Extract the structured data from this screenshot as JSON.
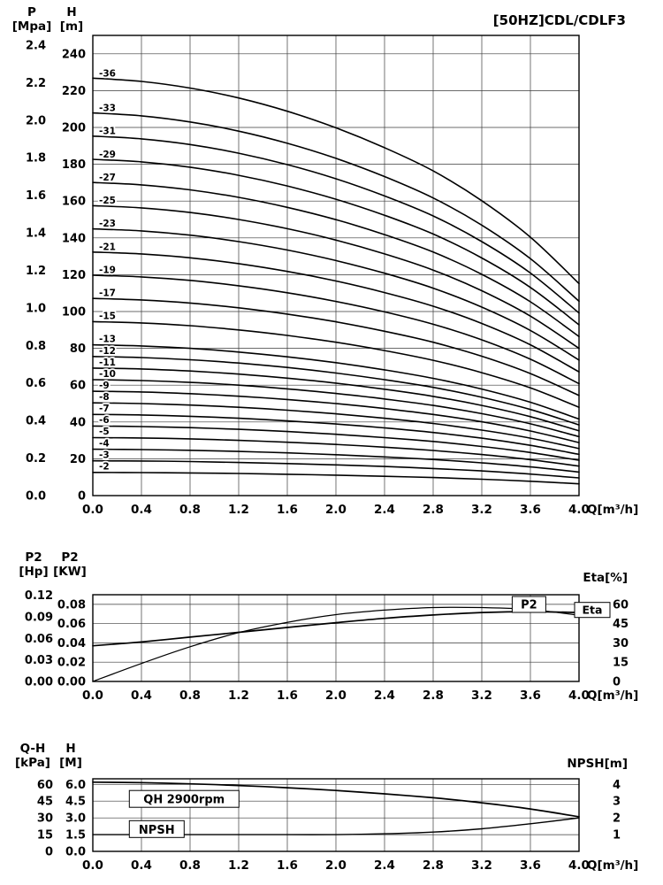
{
  "chart_data": [
    {
      "id": "main",
      "type": "line",
      "title": "[50HZ]CDL/CDLF3",
      "xlabel": "Q[m³/h]",
      "xlim": [
        0,
        4
      ],
      "x": [
        0,
        0.4,
        0.8,
        1.2,
        1.6,
        2.0,
        2.4,
        2.8,
        3.2,
        3.6,
        4.0
      ],
      "x_tick_labels": [
        "0.0",
        "0.4",
        "0.8",
        "1.2",
        "1.6",
        "2.0",
        "2.4",
        "2.8",
        "3.2",
        "3.6",
        "4.0"
      ],
      "left_outer_axis": {
        "name": "P",
        "unit": "[Mpa]",
        "ticks": [
          "0.0",
          "0.2",
          "0.4",
          "0.6",
          "0.8",
          "1.0",
          "1.2",
          "1.4",
          "1.6",
          "1.8",
          "2.0",
          "2.2",
          "2.4"
        ]
      },
      "left_inner_axis": {
        "name": "H",
        "unit": "[m]",
        "ticks": [
          "0",
          "20",
          "40",
          "60",
          "80",
          "100",
          "120",
          "140",
          "160",
          "180",
          "200",
          "220",
          "240"
        ]
      },
      "ylim": [
        0,
        250
      ],
      "grid": true,
      "series": [
        {
          "name": "-36",
          "values": [
            226.8,
            225.0,
            221.4,
            216.0,
            208.8,
            199.8,
            189.0,
            176.4,
            160.2,
            140.4,
            115.2
          ]
        },
        {
          "name": "-33",
          "values": [
            207.9,
            206.3,
            203.0,
            198.0,
            191.4,
            183.2,
            173.3,
            161.7,
            146.9,
            128.7,
            105.6
          ]
        },
        {
          "name": "-31",
          "values": [
            195.3,
            193.8,
            190.7,
            186.0,
            179.8,
            172.1,
            162.8,
            151.9,
            138.0,
            120.9,
            99.2
          ]
        },
        {
          "name": "-29",
          "values": [
            182.7,
            181.3,
            178.4,
            174.0,
            168.2,
            161.0,
            152.3,
            142.1,
            129.1,
            113.1,
            92.8
          ]
        },
        {
          "name": "-27",
          "values": [
            170.1,
            168.8,
            166.1,
            162.0,
            156.6,
            149.9,
            141.8,
            132.3,
            120.2,
            105.3,
            86.4
          ]
        },
        {
          "name": "-25",
          "values": [
            157.5,
            156.3,
            153.8,
            150.0,
            145.0,
            138.8,
            131.3,
            122.5,
            111.3,
            97.5,
            80.0
          ]
        },
        {
          "name": "-23",
          "values": [
            144.9,
            143.8,
            141.5,
            138.0,
            133.4,
            127.7,
            120.8,
            112.7,
            102.4,
            89.7,
            73.6
          ]
        },
        {
          "name": "-21",
          "values": [
            132.3,
            131.3,
            129.2,
            126.0,
            121.8,
            116.6,
            110.3,
            102.9,
            93.5,
            81.9,
            67.2
          ]
        },
        {
          "name": "-19",
          "values": [
            119.7,
            118.8,
            116.9,
            114.0,
            110.2,
            105.5,
            99.8,
            93.1,
            84.6,
            74.1,
            60.8
          ]
        },
        {
          "name": "-17",
          "values": [
            107.1,
            106.3,
            104.6,
            102.0,
            98.6,
            94.4,
            89.3,
            83.3,
            75.7,
            66.3,
            54.4
          ]
        },
        {
          "name": "-15",
          "values": [
            94.5,
            93.8,
            92.3,
            90.0,
            87.0,
            83.3,
            78.8,
            73.5,
            66.8,
            58.5,
            48.0
          ]
        },
        {
          "name": "-13",
          "values": [
            81.9,
            81.3,
            80.0,
            78.0,
            75.4,
            72.2,
            68.3,
            63.7,
            57.9,
            50.7,
            41.6
          ]
        },
        {
          "name": "-12",
          "values": [
            75.6,
            75.0,
            73.8,
            72.0,
            69.6,
            66.6,
            63.0,
            58.8,
            53.4,
            46.8,
            38.4
          ]
        },
        {
          "name": "-11",
          "values": [
            69.3,
            68.8,
            67.7,
            66.0,
            63.8,
            61.1,
            57.8,
            53.9,
            49.0,
            42.9,
            35.2
          ]
        },
        {
          "name": "-10",
          "values": [
            63.0,
            62.5,
            61.5,
            60.0,
            58.0,
            55.5,
            52.5,
            49.0,
            44.5,
            39.0,
            32.0
          ]
        },
        {
          "name": "-9",
          "values": [
            56.7,
            56.3,
            55.4,
            54.0,
            52.2,
            50.0,
            47.3,
            44.1,
            40.1,
            35.1,
            28.8
          ]
        },
        {
          "name": "-8",
          "values": [
            50.4,
            50.0,
            49.2,
            48.0,
            46.4,
            44.4,
            42.0,
            39.2,
            35.6,
            31.2,
            25.6
          ]
        },
        {
          "name": "-7",
          "values": [
            44.1,
            43.8,
            43.1,
            42.0,
            40.6,
            38.9,
            36.8,
            34.3,
            31.2,
            27.3,
            22.4
          ]
        },
        {
          "name": "-6",
          "values": [
            37.8,
            37.5,
            36.9,
            36.0,
            34.8,
            33.3,
            31.5,
            29.4,
            26.7,
            23.4,
            19.2
          ]
        },
        {
          "name": "-5",
          "values": [
            31.5,
            31.3,
            30.8,
            30.0,
            29.0,
            27.8,
            26.3,
            24.5,
            22.3,
            19.5,
            16.0
          ]
        },
        {
          "name": "-4",
          "values": [
            25.2,
            25.0,
            24.6,
            24.0,
            23.2,
            22.2,
            21.0,
            19.6,
            17.8,
            15.6,
            12.8
          ]
        },
        {
          "name": "-3",
          "values": [
            18.9,
            18.8,
            18.5,
            18.0,
            17.4,
            16.7,
            15.8,
            14.7,
            13.4,
            11.7,
            9.6
          ]
        },
        {
          "name": "-2",
          "values": [
            12.6,
            12.5,
            12.3,
            12.0,
            11.6,
            11.1,
            10.5,
            9.8,
            8.9,
            7.8,
            6.4
          ]
        }
      ]
    },
    {
      "id": "power",
      "type": "line",
      "xlabel": "Q[m³/h]",
      "xlim": [
        0,
        4
      ],
      "x": [
        0,
        0.4,
        0.8,
        1.2,
        1.6,
        2.0,
        2.4,
        2.8,
        3.2,
        3.6,
        4.0
      ],
      "x_tick_labels": [
        "0.0",
        "0.4",
        "0.8",
        "1.2",
        "1.6",
        "2.0",
        "2.4",
        "2.8",
        "3.2",
        "3.6",
        "4.0"
      ],
      "left_outer_axis": {
        "name": "P2",
        "unit": "[Hp]",
        "ticks": [
          "0.00",
          "0.03",
          "0.06",
          "0.09",
          "0.12"
        ]
      },
      "left_inner_axis": {
        "name": "P2",
        "unit": "[KW]",
        "ticks": [
          "0.00",
          "0.02",
          "0.04",
          "0.06",
          "0.08"
        ]
      },
      "right_axis": {
        "name": "Eta[%]",
        "ticks": [
          "0",
          "15",
          "30",
          "45",
          "60"
        ]
      },
      "ylim_kw": [
        0,
        0.09
      ],
      "grid": true,
      "series": [
        {
          "name": "P2",
          "unit": "KW",
          "values": [
            0.037,
            0.041,
            0.046,
            0.051,
            0.056,
            0.061,
            0.0655,
            0.069,
            0.0715,
            0.0725,
            0.0715
          ]
        },
        {
          "name": "Eta",
          "unit": "%",
          "values": [
            0,
            14,
            27,
            38,
            46,
            52,
            55.5,
            57.5,
            57.5,
            56,
            51.5
          ]
        }
      ]
    },
    {
      "id": "npsh",
      "type": "line",
      "xlabel": "Q[m³/h]",
      "xlim": [
        0,
        4
      ],
      "x": [
        0,
        0.4,
        0.8,
        1.2,
        1.6,
        2.0,
        2.4,
        2.8,
        3.2,
        3.6,
        4.0
      ],
      "x_tick_labels": [
        "0.0",
        "0.4",
        "0.8",
        "1.2",
        "1.6",
        "2.0",
        "2.4",
        "2.8",
        "3.2",
        "3.6",
        "4.0"
      ],
      "left_outer_axis": {
        "name": "Q-H",
        "unit": "[kPa]",
        "ticks": [
          "0",
          "15",
          "30",
          "45",
          "60"
        ]
      },
      "left_inner_axis": {
        "name": "H",
        "unit": "[M]",
        "ticks": [
          "0.0",
          "1.5",
          "3.0",
          "4.5",
          "6.0"
        ]
      },
      "right_axis": {
        "name": "NPSH[m]",
        "ticks": [
          "1",
          "2",
          "3",
          "4"
        ]
      },
      "ylim_m": [
        0,
        6.5
      ],
      "grid": true,
      "series": [
        {
          "name": "QH 2900rpm",
          "unit": "m",
          "values": [
            6.2,
            6.15,
            6.05,
            5.9,
            5.7,
            5.45,
            5.15,
            4.8,
            4.35,
            3.8,
            3.1
          ]
        },
        {
          "name": "NPSH",
          "unit": "m",
          "values": [
            1.0,
            1.0,
            1.0,
            1.0,
            1.0,
            1.0,
            1.05,
            1.15,
            1.35,
            1.65,
            2.0
          ]
        }
      ]
    }
  ]
}
